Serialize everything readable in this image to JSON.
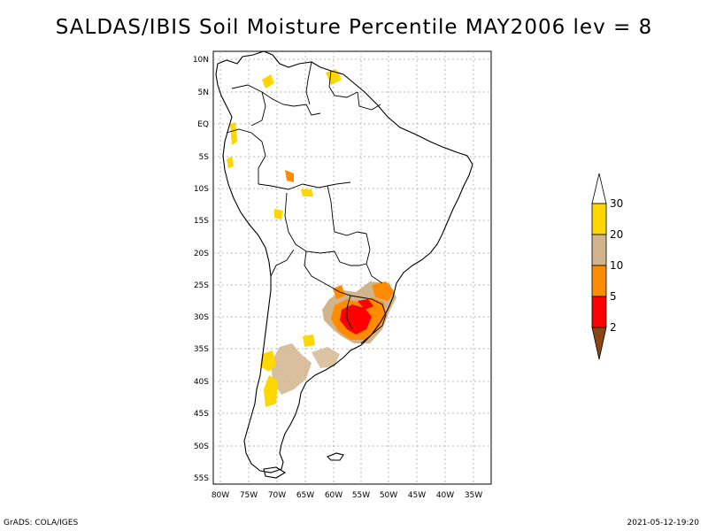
{
  "title": "SALDAS/IBIS Soil Moisture Percentile MAY2006 lev = 8",
  "footer": {
    "left": "GrADS: COLA/IGES",
    "right": "2021-05-12-19:20"
  },
  "axes": {
    "lat_labels": [
      "10N",
      "5N",
      "EQ",
      "5S",
      "10S",
      "15S",
      "20S",
      "25S",
      "30S",
      "35S",
      "40S",
      "45S",
      "50S",
      "55S"
    ],
    "lon_labels": [
      "80W",
      "75W",
      "70W",
      "65W",
      "60W",
      "55W",
      "50W",
      "45W",
      "40W",
      "35W"
    ]
  },
  "colorbar": {
    "labels": [
      "30",
      "20",
      "10",
      "5",
      "2"
    ],
    "colors": {
      "above_30": "#ffffff",
      "20_30": "#ffd700",
      "10_20": "#d2b48c",
      "5_10": "#ff8c00",
      "2_5": "#ff0000",
      "below_2": "#8b4513"
    }
  },
  "colors": {
    "land_outline": "#000000",
    "grid": "#a0a0a0"
  }
}
